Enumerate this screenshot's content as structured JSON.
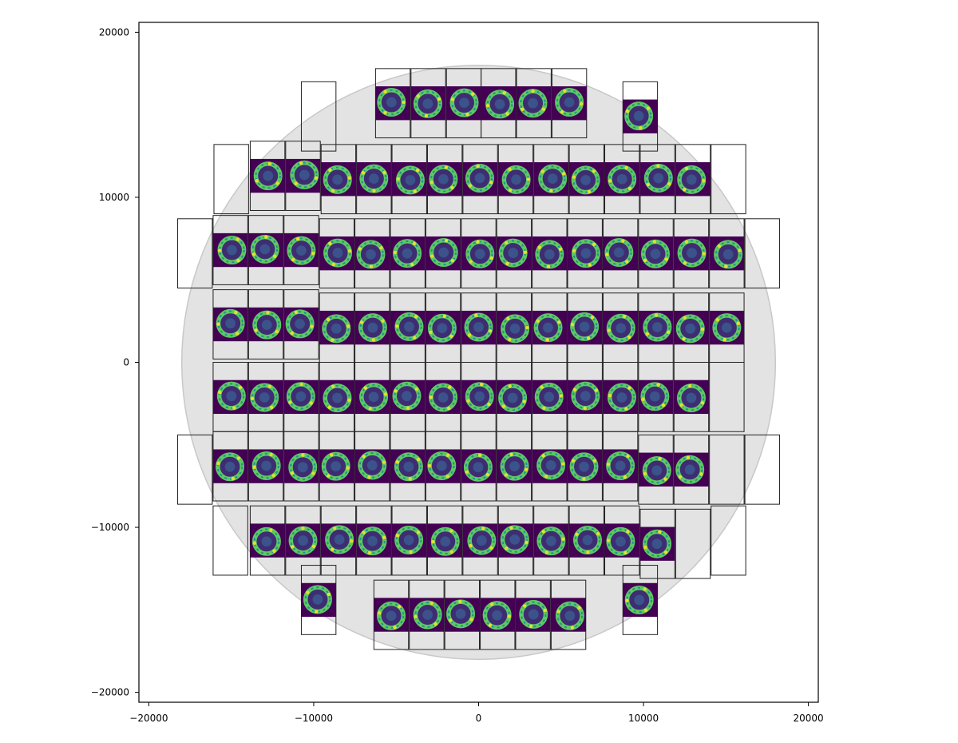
{
  "chart_data": {
    "type": "scatter",
    "title": "",
    "xlabel": "",
    "ylabel": "",
    "xlim": [
      -20600,
      20600
    ],
    "ylim": [
      -20600,
      20600
    ],
    "xticks": [
      -20000,
      -10000,
      0,
      10000,
      20000
    ],
    "yticks": [
      -20000,
      -10000,
      0,
      10000,
      20000
    ],
    "xtick_labels": [
      "−20000",
      "−10000",
      "0",
      "10000",
      "20000"
    ],
    "ytick_labels": [
      "−20000",
      "−10000",
      "0",
      "10000",
      "20000"
    ],
    "grid": false,
    "background_circle": {
      "center": [
        0,
        0
      ],
      "radius": 18000,
      "color": "#e3e3e3"
    },
    "colormap": [
      "#440154",
      "#3b528b",
      "#21918c",
      "#5ec962",
      "#fde725"
    ],
    "detectors": [
      {
        "x": -5200,
        "y": 15700,
        "image": true
      },
      {
        "x": -3050,
        "y": 15700,
        "image": true
      },
      {
        "x": -900,
        "y": 15700,
        "image": true
      },
      {
        "x": 1200,
        "y": 15700,
        "image": true
      },
      {
        "x": 3350,
        "y": 15700,
        "image": true
      },
      {
        "x": 5500,
        "y": 15700,
        "image": true
      },
      {
        "x": -9700,
        "y": 14900,
        "image": false
      },
      {
        "x": 9800,
        "y": 14900,
        "image": true
      },
      {
        "x": -15000,
        "y": 11100,
        "image": false
      },
      {
        "x": -12800,
        "y": 11300,
        "image": true
      },
      {
        "x": -10650,
        "y": 11300,
        "image": true
      },
      {
        "x": -8500,
        "y": 11100,
        "image": true
      },
      {
        "x": -6350,
        "y": 11100,
        "image": true
      },
      {
        "x": -4200,
        "y": 11100,
        "image": true
      },
      {
        "x": -2050,
        "y": 11100,
        "image": true
      },
      {
        "x": 100,
        "y": 11100,
        "image": true
      },
      {
        "x": 2250,
        "y": 11100,
        "image": true
      },
      {
        "x": 4400,
        "y": 11100,
        "image": true
      },
      {
        "x": 6550,
        "y": 11100,
        "image": true
      },
      {
        "x": 8700,
        "y": 11100,
        "image": true
      },
      {
        "x": 10850,
        "y": 11100,
        "image": true
      },
      {
        "x": 13000,
        "y": 11100,
        "image": true
      },
      {
        "x": 15150,
        "y": 11100,
        "image": false
      },
      {
        "x": -17200,
        "y": 6600,
        "image": false
      },
      {
        "x": -15050,
        "y": 6800,
        "image": true
      },
      {
        "x": -12900,
        "y": 6800,
        "image": true
      },
      {
        "x": -10750,
        "y": 6800,
        "image": true
      },
      {
        "x": -8600,
        "y": 6600,
        "image": true
      },
      {
        "x": -6450,
        "y": 6600,
        "image": true
      },
      {
        "x": -4300,
        "y": 6600,
        "image": true
      },
      {
        "x": -2150,
        "y": 6600,
        "image": true
      },
      {
        "x": 0,
        "y": 6600,
        "image": true
      },
      {
        "x": 2150,
        "y": 6600,
        "image": true
      },
      {
        "x": 4300,
        "y": 6600,
        "image": true
      },
      {
        "x": 6450,
        "y": 6600,
        "image": true
      },
      {
        "x": 8600,
        "y": 6600,
        "image": true
      },
      {
        "x": 10750,
        "y": 6600,
        "image": true
      },
      {
        "x": 12900,
        "y": 6600,
        "image": true
      },
      {
        "x": 15050,
        "y": 6600,
        "image": true
      },
      {
        "x": 17200,
        "y": 6600,
        "image": false
      },
      {
        "x": -15050,
        "y": 2300,
        "image": true
      },
      {
        "x": -12900,
        "y": 2300,
        "image": true
      },
      {
        "x": -10750,
        "y": 2300,
        "image": true
      },
      {
        "x": -8600,
        "y": 2100,
        "image": true
      },
      {
        "x": -6450,
        "y": 2100,
        "image": true
      },
      {
        "x": -4300,
        "y": 2100,
        "image": true
      },
      {
        "x": -2150,
        "y": 2100,
        "image": true
      },
      {
        "x": 0,
        "y": 2100,
        "image": true
      },
      {
        "x": 2150,
        "y": 2100,
        "image": true
      },
      {
        "x": 4300,
        "y": 2100,
        "image": true
      },
      {
        "x": 6450,
        "y": 2100,
        "image": true
      },
      {
        "x": 8600,
        "y": 2100,
        "image": true
      },
      {
        "x": 10750,
        "y": 2100,
        "image": true
      },
      {
        "x": 12900,
        "y": 2100,
        "image": true
      },
      {
        "x": 15050,
        "y": 2100,
        "image": true
      },
      {
        "x": -15050,
        "y": -2100,
        "image": true
      },
      {
        "x": -12900,
        "y": -2100,
        "image": true
      },
      {
        "x": -10750,
        "y": -2100,
        "image": true
      },
      {
        "x": -8600,
        "y": -2100,
        "image": true
      },
      {
        "x": -6450,
        "y": -2100,
        "image": true
      },
      {
        "x": -4300,
        "y": -2100,
        "image": true
      },
      {
        "x": -2150,
        "y": -2100,
        "image": true
      },
      {
        "x": 0,
        "y": -2100,
        "image": true
      },
      {
        "x": 2150,
        "y": -2100,
        "image": true
      },
      {
        "x": 4300,
        "y": -2100,
        "image": true
      },
      {
        "x": 6450,
        "y": -2100,
        "image": true
      },
      {
        "x": 8600,
        "y": -2100,
        "image": true
      },
      {
        "x": 10750,
        "y": -2100,
        "image": true
      },
      {
        "x": 12900,
        "y": -2100,
        "image": true
      },
      {
        "x": 15050,
        "y": -2100,
        "image": false
      },
      {
        "x": -17200,
        "y": -6500,
        "image": false
      },
      {
        "x": -15050,
        "y": -6300,
        "image": true
      },
      {
        "x": -12900,
        "y": -6300,
        "image": true
      },
      {
        "x": -10750,
        "y": -6300,
        "image": true
      },
      {
        "x": -8600,
        "y": -6300,
        "image": true
      },
      {
        "x": -6450,
        "y": -6300,
        "image": true
      },
      {
        "x": -4300,
        "y": -6300,
        "image": true
      },
      {
        "x": -2150,
        "y": -6300,
        "image": true
      },
      {
        "x": 0,
        "y": -6300,
        "image": true
      },
      {
        "x": 2150,
        "y": -6300,
        "image": true
      },
      {
        "x": 4300,
        "y": -6300,
        "image": true
      },
      {
        "x": 6450,
        "y": -6300,
        "image": true
      },
      {
        "x": 8600,
        "y": -6300,
        "image": true
      },
      {
        "x": 10750,
        "y": -6500,
        "image": true
      },
      {
        "x": 12900,
        "y": -6500,
        "image": true
      },
      {
        "x": 15050,
        "y": -6500,
        "image": false
      },
      {
        "x": 17200,
        "y": -6500,
        "image": false
      },
      {
        "x": -15050,
        "y": -10800,
        "image": false
      },
      {
        "x": -12800,
        "y": -10800,
        "image": true
      },
      {
        "x": -10650,
        "y": -10800,
        "image": true
      },
      {
        "x": -8500,
        "y": -10800,
        "image": true
      },
      {
        "x": -6350,
        "y": -10800,
        "image": true
      },
      {
        "x": -4200,
        "y": -10800,
        "image": true
      },
      {
        "x": -2050,
        "y": -10800,
        "image": true
      },
      {
        "x": 100,
        "y": -10800,
        "image": true
      },
      {
        "x": 2250,
        "y": -10800,
        "image": true
      },
      {
        "x": 4400,
        "y": -10800,
        "image": true
      },
      {
        "x": 6550,
        "y": -10800,
        "image": true
      },
      {
        "x": 8700,
        "y": -10800,
        "image": true
      },
      {
        "x": 10850,
        "y": -11000,
        "image": true
      },
      {
        "x": 13000,
        "y": -11000,
        "image": false
      },
      {
        "x": 15150,
        "y": -10800,
        "image": false
      },
      {
        "x": -9700,
        "y": -14400,
        "image": true
      },
      {
        "x": -5300,
        "y": -15300,
        "image": true
      },
      {
        "x": -3150,
        "y": -15300,
        "image": true
      },
      {
        "x": -1000,
        "y": -15300,
        "image": true
      },
      {
        "x": 1150,
        "y": -15300,
        "image": true
      },
      {
        "x": 3300,
        "y": -15300,
        "image": true
      },
      {
        "x": 5450,
        "y": -15300,
        "image": true
      },
      {
        "x": 9800,
        "y": -14400,
        "image": true
      }
    ]
  }
}
